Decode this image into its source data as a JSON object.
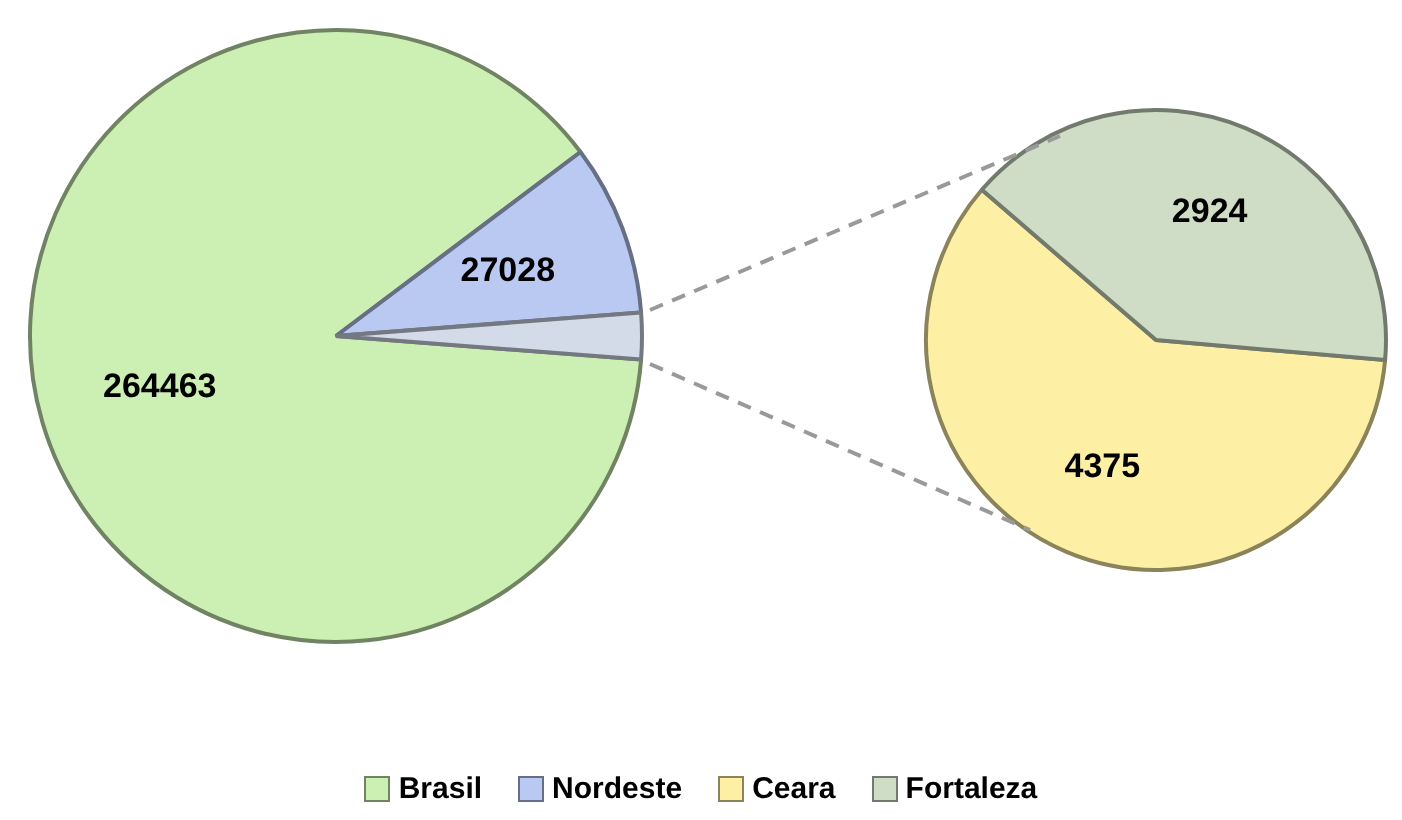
{
  "chart_data": [
    {
      "type": "pie",
      "categories": [
        "Brasil",
        "Nordeste",
        null
      ],
      "values": [
        264463,
        27028,
        7299
      ],
      "colors": [
        "#ccefb4",
        "#b9c9f2",
        "#d3dae8"
      ],
      "value_labels": [
        "264463",
        "27028",
        null
      ],
      "legend": "bottom"
    },
    {
      "type": "pie",
      "categories": [
        "Ceara",
        "Fortaleza"
      ],
      "values": [
        4375,
        2924
      ],
      "colors": [
        "#fdefa4",
        "#cfdcc6"
      ],
      "data_labels": true,
      "legend": "bottom"
    }
  ]
}
